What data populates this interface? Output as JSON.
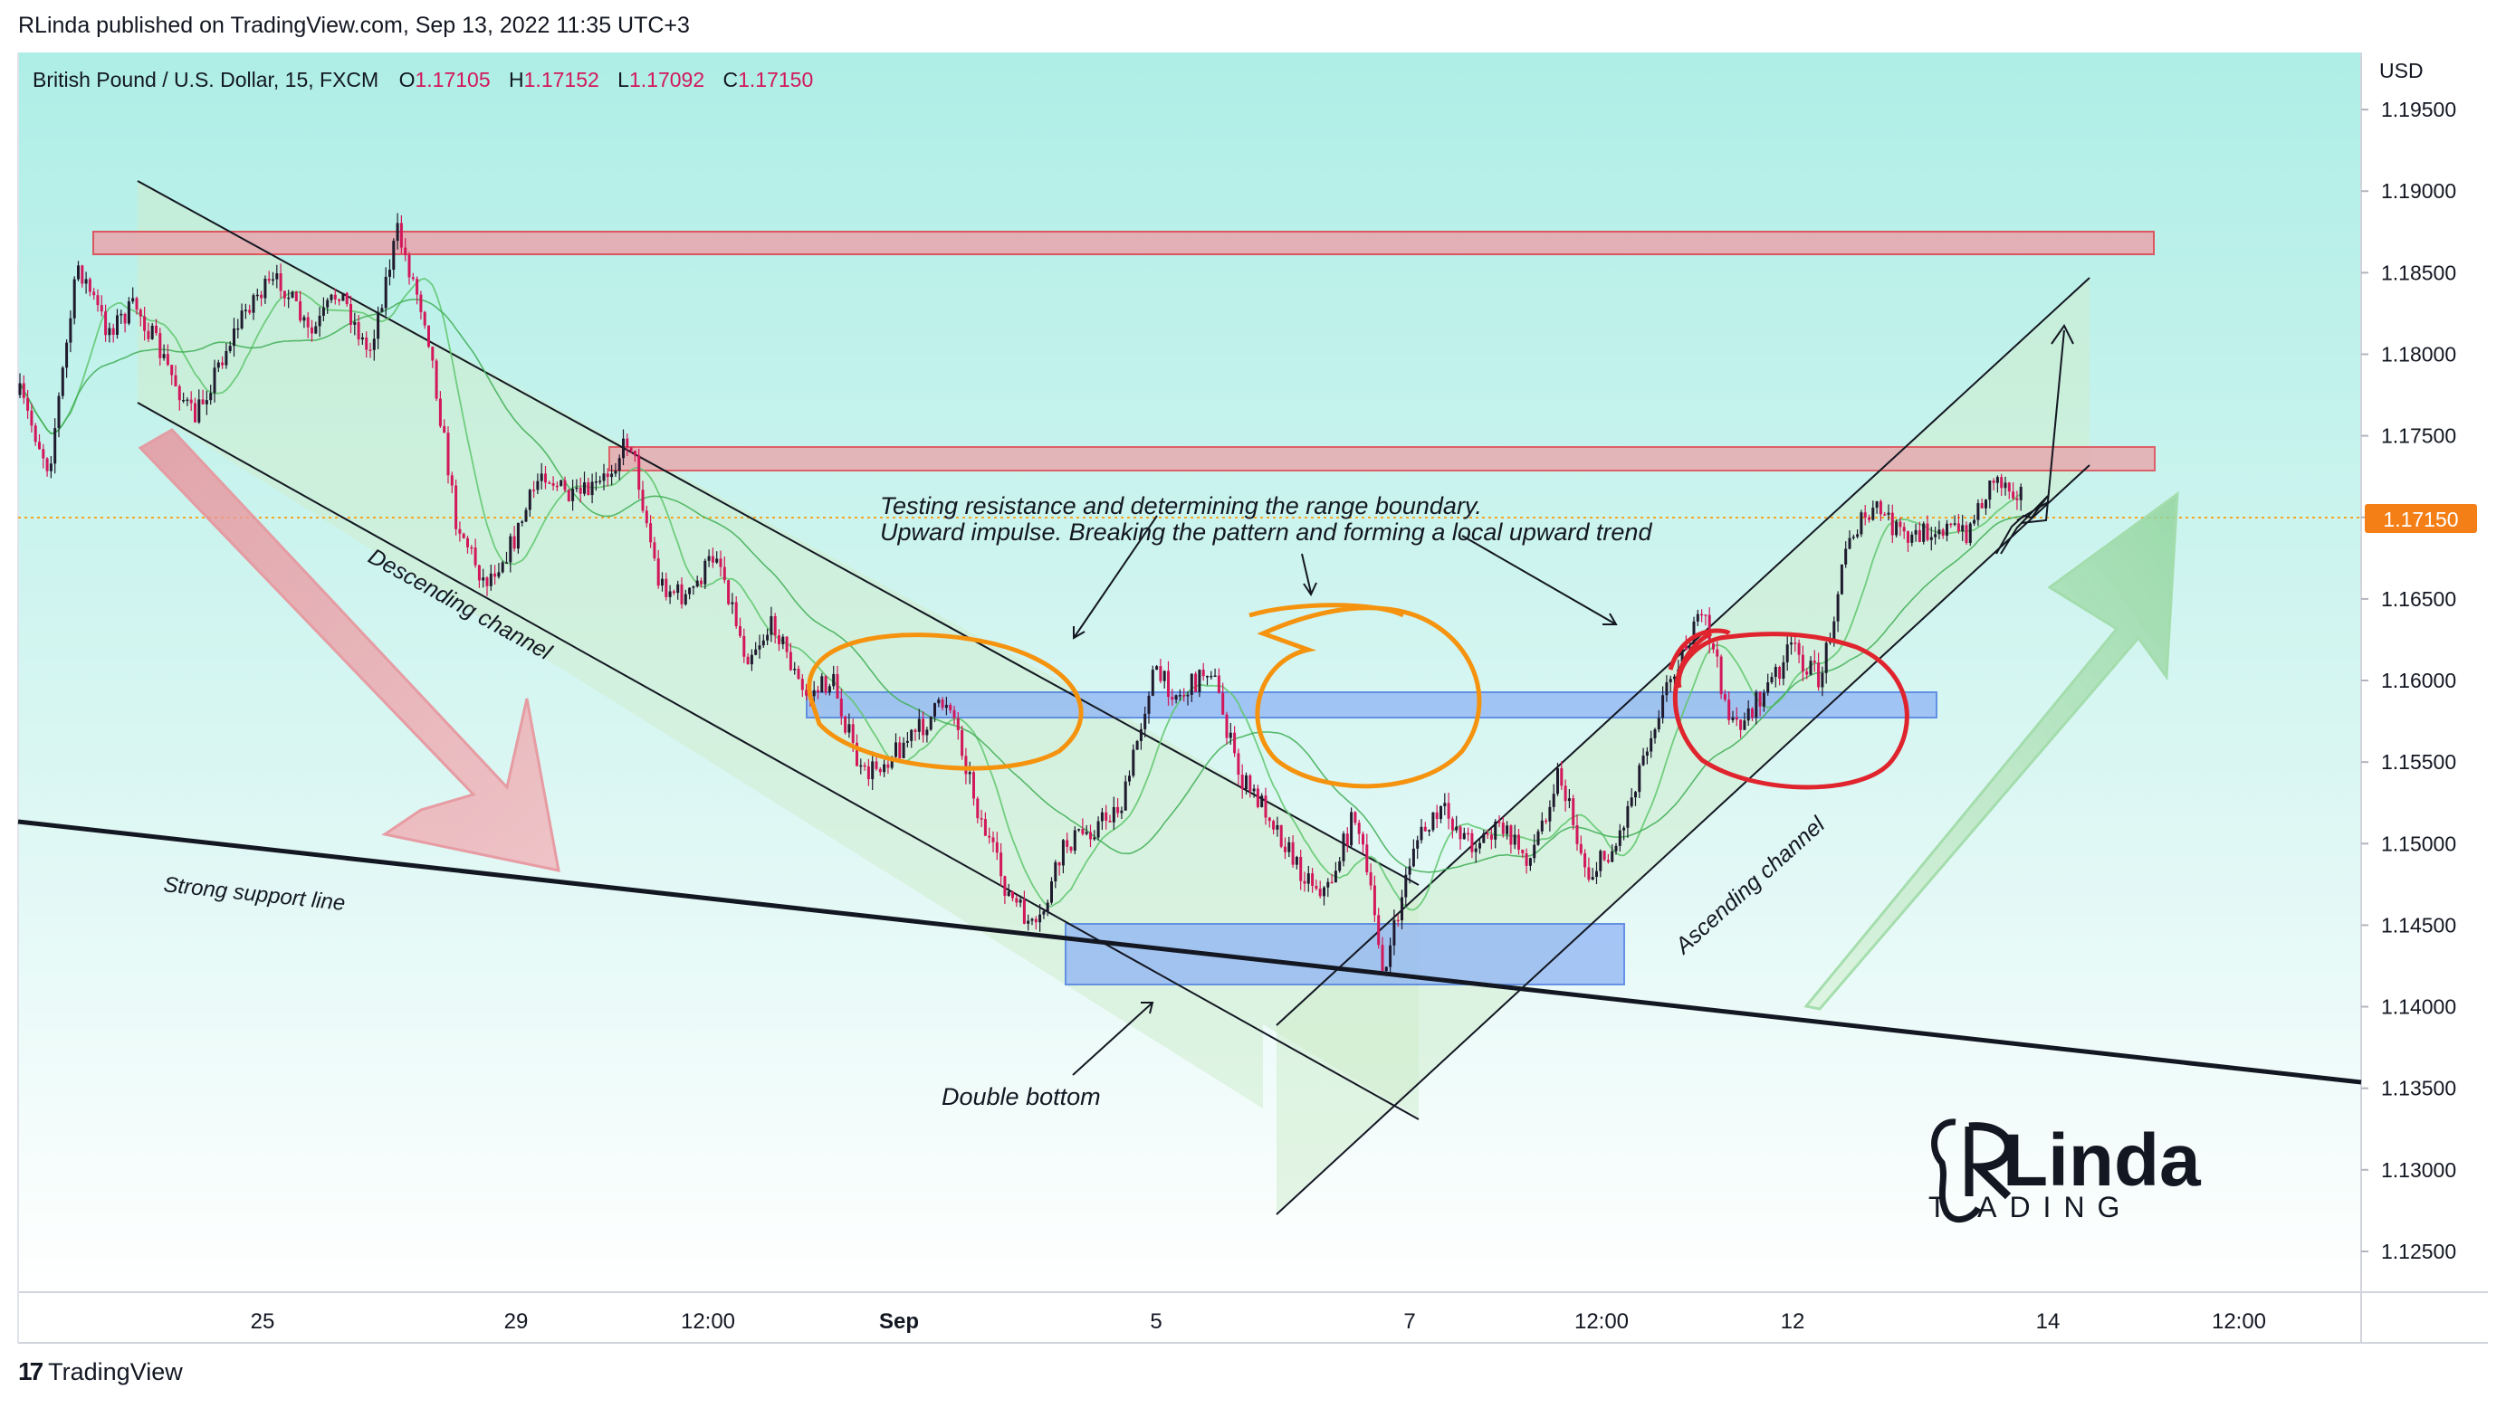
{
  "header": {
    "published": "RLinda published on TradingView.com, Sep 13, 2022 11:35 UTC+3"
  },
  "symbol": {
    "name": "British Pound / U.S. Dollar, 15, FXCM",
    "o_label": "O",
    "o_value": "1.17105",
    "h_label": "H",
    "h_value": "1.17152",
    "l_label": "L",
    "l_value": "1.17092",
    "c_label": "C",
    "c_value": "1.17150"
  },
  "footer": {
    "brand": "TradingView"
  },
  "logo": {
    "main": "Linda",
    "sub": "T ADING"
  },
  "colors": {
    "bg_top": "#aeeee6",
    "bg_bottom": "#ffffff",
    "resistance_fill": "#e9a6ad",
    "resistance_border": "#e23c47",
    "blue_zone": "#8fb4f5",
    "blue_border": "#3b6fe0",
    "channel_fill": "#cfeccd",
    "orange": "#f5930f",
    "red": "#e0242e",
    "price_label": "#f57f17",
    "candle_up": "#1f1a2e",
    "candle_down": "#d2175a"
  },
  "chart_data": {
    "type": "candlestick",
    "title": "British Pound / U.S. Dollar, 15, FXCM",
    "ylabel": "USD",
    "ylim": [
      1.1225,
      1.1985
    ],
    "y_ticks": [
      "1.19500",
      "1.19000",
      "1.18500",
      "1.18000",
      "1.17500",
      "1.17000",
      "1.16500",
      "1.16000",
      "1.15500",
      "1.15000",
      "1.14500",
      "1.14000",
      "1.13500",
      "1.13000",
      "1.12500"
    ],
    "x_ticks": [
      "25",
      "29",
      "12:00",
      "Sep",
      "5",
      "7",
      "12:00",
      "12",
      "14",
      "12:00"
    ],
    "current_price": "1.17150",
    "price_path": [
      {
        "d": "Aug 24",
        "p": 1.1775
      },
      {
        "d": "Aug 24",
        "p": 1.173
      },
      {
        "d": "Aug 25",
        "p": 1.1855
      },
      {
        "d": "Aug 25",
        "p": 1.1815
      },
      {
        "d": "Aug 26",
        "p": 1.183
      },
      {
        "d": "Aug 26",
        "p": 1.1795
      },
      {
        "d": "Aug 26",
        "p": 1.176
      },
      {
        "d": "Aug 26",
        "p": 1.18
      },
      {
        "d": "Aug 26",
        "p": 1.1835
      },
      {
        "d": "Aug 26",
        "p": 1.1845
      },
      {
        "d": "Aug 26",
        "p": 1.181
      },
      {
        "d": "Aug 29",
        "p": 1.184
      },
      {
        "d": "Aug 29",
        "p": 1.18
      },
      {
        "d": "Aug 29",
        "p": 1.1875
      },
      {
        "d": "Aug 29",
        "p": 1.182
      },
      {
        "d": "Aug 29",
        "p": 1.17
      },
      {
        "d": "Aug 30",
        "p": 1.166
      },
      {
        "d": "Aug 30",
        "p": 1.1685
      },
      {
        "d": "Aug 30",
        "p": 1.173
      },
      {
        "d": "Aug 31",
        "p": 1.171
      },
      {
        "d": "Aug 31",
        "p": 1.172
      },
      {
        "d": "Aug 31",
        "p": 1.175
      },
      {
        "d": "Aug 31",
        "p": 1.166
      },
      {
        "d": "Aug 31",
        "p": 1.165
      },
      {
        "d": "Sep 1",
        "p": 1.168
      },
      {
        "d": "Sep 1",
        "p": 1.1615
      },
      {
        "d": "Sep 1",
        "p": 1.1635
      },
      {
        "d": "Sep 2",
        "p": 1.159
      },
      {
        "d": "Sep 2",
        "p": 1.16
      },
      {
        "d": "Sep 2",
        "p": 1.154
      },
      {
        "d": "Sep 2",
        "p": 1.1555
      },
      {
        "d": "Sep 2",
        "p": 1.157
      },
      {
        "d": "Sep 4",
        "p": 1.159
      },
      {
        "d": "Sep 5",
        "p": 1.152
      },
      {
        "d": "Sep 5",
        "p": 1.147
      },
      {
        "d": "Sep 5",
        "p": 1.1445
      },
      {
        "d": "Sep 5",
        "p": 1.15
      },
      {
        "d": "Sep 6",
        "p": 1.151
      },
      {
        "d": "Sep 6",
        "p": 1.1525
      },
      {
        "d": "Sep 6",
        "p": 1.1605
      },
      {
        "d": "Sep 6",
        "p": 1.159
      },
      {
        "d": "Sep 6",
        "p": 1.161
      },
      {
        "d": "Sep 6",
        "p": 1.154
      },
      {
        "d": "Sep 7",
        "p": 1.152
      },
      {
        "d": "Sep 7",
        "p": 1.1485
      },
      {
        "d": "Sep 7",
        "p": 1.147
      },
      {
        "d": "Sep 7",
        "p": 1.152
      },
      {
        "d": "Sep 7",
        "p": 1.142
      },
      {
        "d": "Sep 8",
        "p": 1.15
      },
      {
        "d": "Sep 8",
        "p": 1.152
      },
      {
        "d": "Sep 8",
        "p": 1.15
      },
      {
        "d": "Sep 8",
        "p": 1.151
      },
      {
        "d": "Sep 8",
        "p": 1.149
      },
      {
        "d": "Sep 8",
        "p": 1.1545
      },
      {
        "d": "Sep 8",
        "p": 1.148
      },
      {
        "d": "Sep 9",
        "p": 1.15
      },
      {
        "d": "Sep 9",
        "p": 1.156
      },
      {
        "d": "Sep 9",
        "p": 1.161
      },
      {
        "d": "Sep 9",
        "p": 1.164
      },
      {
        "d": "Sep 9",
        "p": 1.157
      },
      {
        "d": "Sep 11",
        "p": 1.159
      },
      {
        "d": "Sep 12",
        "p": 1.162
      },
      {
        "d": "Sep 12",
        "p": 1.16
      },
      {
        "d": "Sep 12",
        "p": 1.169
      },
      {
        "d": "Sep 12",
        "p": 1.1705
      },
      {
        "d": "Sep 12",
        "p": 1.1685
      },
      {
        "d": "Sep 13",
        "p": 1.1695
      },
      {
        "d": "Sep 13",
        "p": 1.169
      },
      {
        "d": "Sep 13",
        "p": 1.1725
      },
      {
        "d": "Sep 13",
        "p": 1.1715
      }
    ],
    "zones": [
      {
        "name": "resistance-zone-upper",
        "low": 1.1879,
        "high": 1.1892
      },
      {
        "name": "resistance-zone-middle",
        "low": 1.1745,
        "high": 1.1759
      },
      {
        "name": "blue-zone-upper",
        "low": 1.159,
        "high": 1.1606
      },
      {
        "name": "blue-zone-lower",
        "low": 1.1422,
        "high": 1.146
      }
    ]
  },
  "annotations": {
    "descending_channel": "Descending channel",
    "ascending_channel": "Ascending channel",
    "support_line": "Strong support line",
    "double_bottom": "Double bottom",
    "testing_line1": "Testing resistance and determining the range boundary.",
    "testing_line2": "Upward impulse. Breaking the pattern and forming a local upward trend"
  }
}
